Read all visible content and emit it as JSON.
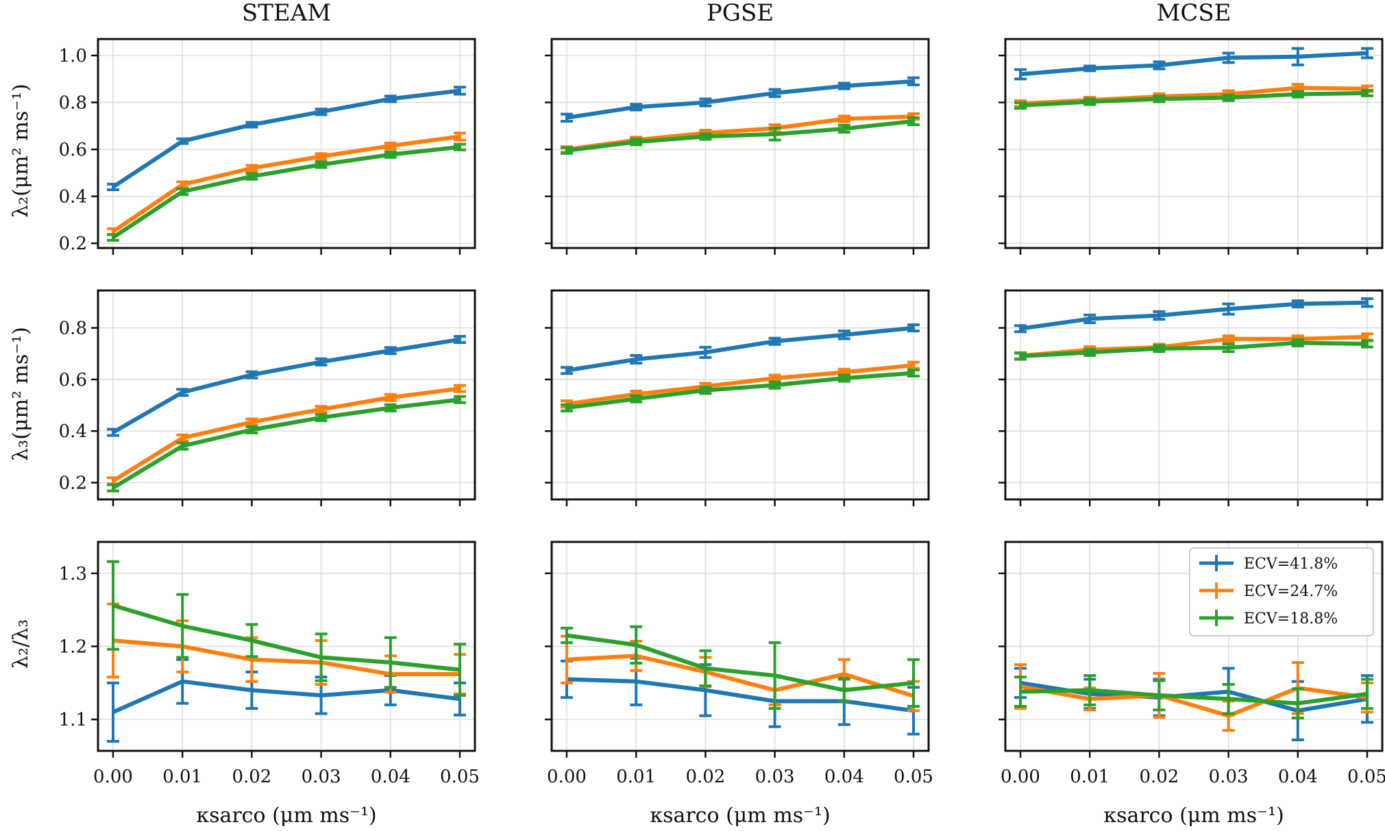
{
  "figure": {
    "column_titles": [
      "STEAM",
      "PGSE",
      "MCSE"
    ],
    "row_ylabels": [
      "λ₂(μm² ms⁻¹)",
      "λ₃(μm² ms⁻¹)",
      "λ₂/λ₃"
    ],
    "xlabel": "κsarco (μm ms⁻¹)",
    "x_ticks": [
      "0.00",
      "0.01",
      "0.02",
      "0.03",
      "0.04",
      "0.05"
    ],
    "y_ticks": [
      [
        "0.2",
        "0.4",
        "0.6",
        "0.8",
        "1.0"
      ],
      [
        "0.2",
        "0.4",
        "0.6",
        "0.8"
      ],
      [
        "1.1",
        "1.2",
        "1.3"
      ]
    ],
    "legend": [
      "ECV=41.8%",
      "ECV=24.7%",
      "ECV=18.8%"
    ]
  },
  "colors": {
    "blue": "#1f77b4",
    "orange": "#ff7f0e",
    "green": "#2ca02c"
  },
  "chart_data": [
    {
      "type": "line",
      "row": 0,
      "col": 0,
      "title": "STEAM",
      "ylabel": "λ₂(μm² ms⁻¹)",
      "xlabel": "",
      "x": [
        0,
        0.01,
        0.02,
        0.03,
        0.04,
        0.05
      ],
      "ylim": [
        0.18,
        1.07
      ],
      "grid": true,
      "series": [
        {
          "name": "ECV=41.8%",
          "color": "#1f77b4",
          "values": [
            0.44,
            0.635,
            0.705,
            0.76,
            0.815,
            0.85
          ],
          "err": [
            0.012,
            0.01,
            0.01,
            0.012,
            0.012,
            0.015
          ]
        },
        {
          "name": "ECV=24.7%",
          "color": "#ff7f0e",
          "values": [
            0.25,
            0.45,
            0.52,
            0.57,
            0.615,
            0.655
          ],
          "err": [
            0.012,
            0.012,
            0.012,
            0.012,
            0.012,
            0.015
          ]
        },
        {
          "name": "ECV=18.8%",
          "color": "#2ca02c",
          "values": [
            0.225,
            0.42,
            0.485,
            0.535,
            0.578,
            0.61
          ],
          "err": [
            0.012,
            0.012,
            0.012,
            0.012,
            0.012,
            0.012
          ]
        }
      ]
    },
    {
      "type": "line",
      "row": 0,
      "col": 1,
      "title": "PGSE",
      "ylabel": "",
      "xlabel": "",
      "x": [
        0,
        0.01,
        0.02,
        0.03,
        0.04,
        0.05
      ],
      "ylim": [
        0.18,
        1.07
      ],
      "grid": true,
      "series": [
        {
          "name": "ECV=41.8%",
          "color": "#1f77b4",
          "values": [
            0.735,
            0.78,
            0.8,
            0.84,
            0.87,
            0.89
          ],
          "err": [
            0.015,
            0.012,
            0.015,
            0.015,
            0.012,
            0.015
          ]
        },
        {
          "name": "ECV=24.7%",
          "color": "#ff7f0e",
          "values": [
            0.6,
            0.64,
            0.67,
            0.69,
            0.73,
            0.74
          ],
          "err": [
            0.012,
            0.012,
            0.012,
            0.015,
            0.012,
            0.012
          ]
        },
        {
          "name": "ECV=18.8%",
          "color": "#2ca02c",
          "values": [
            0.595,
            0.632,
            0.655,
            0.665,
            0.688,
            0.72
          ],
          "err": [
            0.012,
            0.012,
            0.012,
            0.025,
            0.015,
            0.015
          ]
        }
      ]
    },
    {
      "type": "line",
      "row": 0,
      "col": 2,
      "title": "MCSE",
      "ylabel": "",
      "xlabel": "",
      "x": [
        0,
        0.01,
        0.02,
        0.03,
        0.04,
        0.05
      ],
      "ylim": [
        0.18,
        1.07
      ],
      "grid": true,
      "series": [
        {
          "name": "ECV=41.8%",
          "color": "#1f77b4",
          "values": [
            0.92,
            0.945,
            0.958,
            0.99,
            0.995,
            1.01
          ],
          "err": [
            0.02,
            0.01,
            0.015,
            0.02,
            0.035,
            0.02
          ]
        },
        {
          "name": "ECV=24.7%",
          "color": "#ff7f0e",
          "values": [
            0.795,
            0.81,
            0.825,
            0.835,
            0.862,
            0.858
          ],
          "err": [
            0.012,
            0.012,
            0.012,
            0.015,
            0.015,
            0.012
          ]
        },
        {
          "name": "ECV=18.8%",
          "color": "#2ca02c",
          "values": [
            0.787,
            0.803,
            0.815,
            0.82,
            0.835,
            0.84
          ],
          "err": [
            0.012,
            0.012,
            0.012,
            0.012,
            0.012,
            0.012
          ]
        }
      ]
    },
    {
      "type": "line",
      "row": 1,
      "col": 0,
      "title": "",
      "ylabel": "λ₃(μm² ms⁻¹)",
      "xlabel": "",
      "x": [
        0,
        0.01,
        0.02,
        0.03,
        0.04,
        0.05
      ],
      "ylim": [
        0.135,
        0.945
      ],
      "grid": true,
      "series": [
        {
          "name": "ECV=41.8%",
          "color": "#1f77b4",
          "values": [
            0.395,
            0.55,
            0.618,
            0.668,
            0.712,
            0.755
          ],
          "err": [
            0.012,
            0.012,
            0.012,
            0.012,
            0.012,
            0.012
          ]
        },
        {
          "name": "ECV=24.7%",
          "color": "#ff7f0e",
          "values": [
            0.207,
            0.373,
            0.435,
            0.484,
            0.53,
            0.565
          ],
          "err": [
            0.012,
            0.012,
            0.012,
            0.012,
            0.012,
            0.012
          ]
        },
        {
          "name": "ECV=18.8%",
          "color": "#2ca02c",
          "values": [
            0.18,
            0.342,
            0.405,
            0.452,
            0.49,
            0.522
          ],
          "err": [
            0.012,
            0.012,
            0.012,
            0.012,
            0.012,
            0.012
          ]
        }
      ]
    },
    {
      "type": "line",
      "row": 1,
      "col": 1,
      "title": "",
      "ylabel": "",
      "xlabel": "",
      "x": [
        0,
        0.01,
        0.02,
        0.03,
        0.04,
        0.05
      ],
      "ylim": [
        0.135,
        0.945
      ],
      "grid": true,
      "series": [
        {
          "name": "ECV=41.8%",
          "color": "#1f77b4",
          "values": [
            0.635,
            0.678,
            0.705,
            0.748,
            0.773,
            0.8
          ],
          "err": [
            0.012,
            0.015,
            0.02,
            0.012,
            0.015,
            0.012
          ]
        },
        {
          "name": "ECV=24.7%",
          "color": "#ff7f0e",
          "values": [
            0.505,
            0.543,
            0.573,
            0.605,
            0.628,
            0.655
          ],
          "err": [
            0.012,
            0.012,
            0.012,
            0.012,
            0.012,
            0.012
          ]
        },
        {
          "name": "ECV=18.8%",
          "color": "#2ca02c",
          "values": [
            0.49,
            0.525,
            0.558,
            0.578,
            0.605,
            0.625
          ],
          "err": [
            0.012,
            0.012,
            0.012,
            0.012,
            0.012,
            0.012
          ]
        }
      ]
    },
    {
      "type": "line",
      "row": 1,
      "col": 2,
      "title": "",
      "ylabel": "",
      "xlabel": "",
      "x": [
        0,
        0.01,
        0.02,
        0.03,
        0.04,
        0.05
      ],
      "ylim": [
        0.135,
        0.945
      ],
      "grid": true,
      "series": [
        {
          "name": "ECV=41.8%",
          "color": "#1f77b4",
          "values": [
            0.797,
            0.835,
            0.848,
            0.873,
            0.893,
            0.898
          ],
          "err": [
            0.012,
            0.015,
            0.015,
            0.02,
            0.012,
            0.015
          ]
        },
        {
          "name": "ECV=24.7%",
          "color": "#ff7f0e",
          "values": [
            0.692,
            0.715,
            0.725,
            0.757,
            0.757,
            0.765
          ],
          "err": [
            0.012,
            0.012,
            0.012,
            0.012,
            0.012,
            0.012
          ]
        },
        {
          "name": "ECV=18.8%",
          "color": "#2ca02c",
          "values": [
            0.69,
            0.705,
            0.72,
            0.723,
            0.742,
            0.738
          ],
          "err": [
            0.012,
            0.012,
            0.012,
            0.015,
            0.012,
            0.012
          ]
        }
      ]
    },
    {
      "type": "line",
      "row": 2,
      "col": 0,
      "title": "",
      "ylabel": "λ₂/λ₃",
      "xlabel": "κsarco (μm ms⁻¹)",
      "x": [
        0,
        0.01,
        0.02,
        0.03,
        0.04,
        0.05
      ],
      "ylim": [
        1.057,
        1.343
      ],
      "grid": true,
      "series": [
        {
          "name": "ECV=41.8%",
          "color": "#1f77b4",
          "values": [
            1.11,
            1.152,
            1.14,
            1.133,
            1.14,
            1.128
          ],
          "err": [
            0.04,
            0.03,
            0.025,
            0.025,
            0.02,
            0.022
          ]
        },
        {
          "name": "ECV=24.7%",
          "color": "#ff7f0e",
          "values": [
            1.208,
            1.2,
            1.182,
            1.178,
            1.162,
            1.162
          ],
          "err": [
            0.05,
            0.035,
            0.03,
            0.03,
            0.025,
            0.027
          ]
        },
        {
          "name": "ECV=18.8%",
          "color": "#2ca02c",
          "values": [
            1.256,
            1.228,
            1.208,
            1.185,
            1.178,
            1.168
          ],
          "err": [
            0.06,
            0.043,
            0.022,
            0.032,
            0.034,
            0.035
          ]
        }
      ]
    },
    {
      "type": "line",
      "row": 2,
      "col": 1,
      "title": "",
      "ylabel": "",
      "xlabel": "κsarco (μm ms⁻¹)",
      "x": [
        0,
        0.01,
        0.02,
        0.03,
        0.04,
        0.05
      ],
      "ylim": [
        1.057,
        1.343
      ],
      "grid": true,
      "series": [
        {
          "name": "ECV=41.8%",
          "color": "#1f77b4",
          "values": [
            1.155,
            1.152,
            1.14,
            1.125,
            1.125,
            1.112
          ],
          "err": [
            0.025,
            0.032,
            0.035,
            0.035,
            0.032,
            0.032
          ]
        },
        {
          "name": "ECV=24.7%",
          "color": "#ff7f0e",
          "values": [
            1.182,
            1.187,
            1.165,
            1.14,
            1.162,
            1.132
          ],
          "err": [
            0.032,
            0.02,
            0.02,
            0.02,
            0.02,
            0.02
          ]
        },
        {
          "name": "ECV=18.8%",
          "color": "#2ca02c",
          "values": [
            1.215,
            1.202,
            1.17,
            1.16,
            1.14,
            1.15
          ],
          "err": [
            0.01,
            0.025,
            0.024,
            0.045,
            0.015,
            0.032
          ]
        }
      ]
    },
    {
      "type": "line",
      "row": 2,
      "col": 2,
      "title": "",
      "ylabel": "",
      "xlabel": "κsarco (μm ms⁻¹)",
      "x": [
        0,
        0.01,
        0.02,
        0.03,
        0.04,
        0.05
      ],
      "ylim": [
        1.057,
        1.343
      ],
      "grid": true,
      "legend_position": "top-right",
      "series": [
        {
          "name": "ECV=41.8%",
          "color": "#1f77b4",
          "values": [
            1.15,
            1.135,
            1.13,
            1.138,
            1.112,
            1.128
          ],
          "err": [
            0.02,
            0.02,
            0.025,
            0.032,
            0.04,
            0.032
          ]
        },
        {
          "name": "ECV=24.7%",
          "color": "#ff7f0e",
          "values": [
            1.145,
            1.128,
            1.133,
            1.105,
            1.143,
            1.13
          ],
          "err": [
            0.03,
            0.015,
            0.03,
            0.02,
            0.035,
            0.02
          ]
        },
        {
          "name": "ECV=18.8%",
          "color": "#2ca02c",
          "values": [
            1.138,
            1.14,
            1.133,
            1.128,
            1.122,
            1.135
          ],
          "err": [
            0.02,
            0.02,
            0.02,
            0.02,
            0.02,
            0.02
          ]
        }
      ]
    }
  ]
}
